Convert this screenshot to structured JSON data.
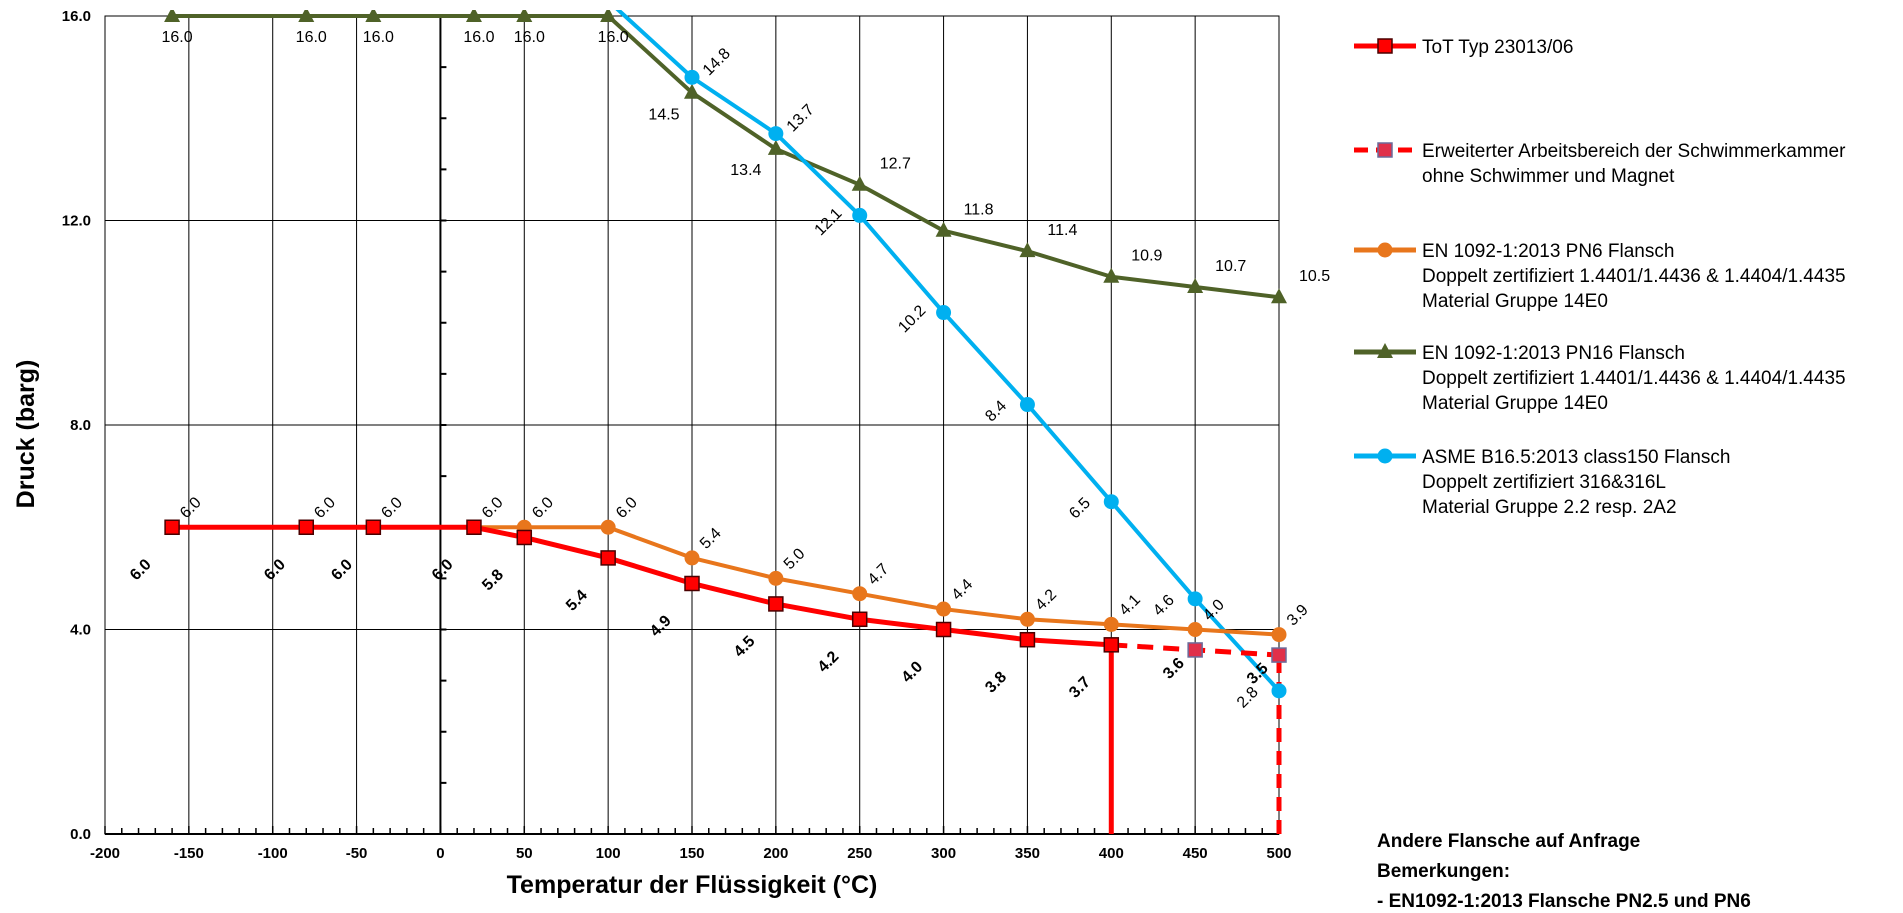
{
  "chart_data": {
    "type": "line",
    "title": "",
    "xlabel": "Temperatur der Flüssigkeit (°C)",
    "ylabel": "Druck (barg)",
    "xlim": [
      -200,
      500
    ],
    "ylim": [
      0,
      16
    ],
    "x_ticks": [
      "-200",
      "-150",
      "-100",
      "-50",
      "0",
      "50",
      "100",
      "150",
      "200",
      "250",
      "300",
      "350",
      "400",
      "450",
      "500"
    ],
    "y_ticks": [
      "0.0",
      "4.0",
      "8.0",
      "12.0",
      "16.0"
    ],
    "grid": true,
    "legend_position": "right",
    "series": [
      {
        "name": "ToT Typ 23013/06",
        "color": "#ff0000",
        "marker": "square",
        "style": "solid",
        "points": [
          [
            -160,
            6.0
          ],
          [
            -80,
            6.0
          ],
          [
            -40,
            6.0
          ],
          [
            20,
            6.0
          ],
          [
            50,
            5.8
          ],
          [
            100,
            5.4
          ],
          [
            150,
            4.9
          ],
          [
            200,
            4.5
          ],
          [
            250,
            4.2
          ],
          [
            300,
            4.0
          ],
          [
            350,
            3.8
          ],
          [
            400,
            3.7
          ]
        ],
        "labels": [
          "6.0",
          "6.0",
          "6.0",
          "6.0",
          "5.8",
          "5.4",
          "4.9",
          "4.5",
          "4.2",
          "4.0",
          "3.8",
          "3.7"
        ]
      },
      {
        "name": "Erweiterter Arbeitsbereich der Schwimmerkammer",
        "name2": "ohne Schwimmer und Magnet",
        "color": "#ff0000",
        "marker": "square",
        "style": "dashed",
        "points": [
          [
            400,
            3.7
          ],
          [
            450,
            3.6
          ],
          [
            500,
            3.5
          ]
        ],
        "labels": [
          "",
          "3.6",
          "3.5"
        ]
      },
      {
        "name": "EN 1092-1:2013 PN6 Flansch",
        "name2": "Doppelt zertifiziert 1.4401/1.4436 & 1.4404/1.4435",
        "name3": "Material Gruppe 14E0",
        "color": "#e8761c",
        "marker": "circle",
        "style": "solid",
        "points": [
          [
            -160,
            6.0
          ],
          [
            -80,
            6.0
          ],
          [
            -40,
            6.0
          ],
          [
            20,
            6.0
          ],
          [
            50,
            6.0
          ],
          [
            100,
            6.0
          ],
          [
            150,
            5.4
          ],
          [
            200,
            5.0
          ],
          [
            250,
            4.7
          ],
          [
            300,
            4.4
          ],
          [
            350,
            4.2
          ],
          [
            400,
            4.1
          ],
          [
            450,
            4.0
          ],
          [
            500,
            3.9
          ]
        ],
        "labels": [
          "6.0",
          "6.0",
          "6.0",
          "6.0",
          "6.0",
          "6.0",
          "5.4",
          "5.0",
          "4.7",
          "4.4",
          "4.2",
          "4.1",
          "4.0",
          "3.9"
        ]
      },
      {
        "name": "EN 1092-1:2013 PN16 Flansch",
        "name2": "Doppelt zertifiziert 1.4401/1.4436 & 1.4404/1.4435",
        "name3": "Material Gruppe 14E0",
        "color": "#4f6228",
        "marker": "triangle",
        "style": "solid",
        "points": [
          [
            -160,
            16.0
          ],
          [
            -80,
            16.0
          ],
          [
            -40,
            16.0
          ],
          [
            20,
            16.0
          ],
          [
            50,
            16.0
          ],
          [
            100,
            16.0
          ],
          [
            150,
            14.5
          ],
          [
            200,
            13.4
          ],
          [
            250,
            12.7
          ],
          [
            300,
            11.8
          ],
          [
            350,
            11.4
          ],
          [
            400,
            10.9
          ],
          [
            450,
            10.7
          ],
          [
            500,
            10.5
          ]
        ],
        "labels": [
          "16.0",
          "16.0",
          "16.0",
          "16.0",
          "16.0",
          "16.0",
          "14.5",
          "13.4",
          "12.7",
          "11.8",
          "11.4",
          "10.9",
          "10.7",
          "10.5"
        ]
      },
      {
        "name": "ASME B16.5:2013 class150 Flansch",
        "name2": "Doppelt zertifiziert 316&316L",
        "name3": "Material Gruppe 2.2 resp. 2A2",
        "color": "#00b0f0",
        "marker": "circle",
        "style": "solid",
        "points": [
          [
            100,
            16.3
          ],
          [
            150,
            14.8
          ],
          [
            200,
            13.7
          ],
          [
            250,
            12.1
          ],
          [
            300,
            10.2
          ],
          [
            350,
            8.4
          ],
          [
            400,
            6.5
          ],
          [
            450,
            4.6
          ],
          [
            500,
            2.8
          ]
        ],
        "labels": [
          "",
          "14.8",
          "13.7",
          "12.1",
          "10.2",
          "8.4",
          "6.5",
          "4.6",
          "2.8"
        ]
      }
    ],
    "limit_lines": [
      {
        "x": 400,
        "from": 0,
        "to": 3.7,
        "style": "solid",
        "color": "#ff0000"
      },
      {
        "x": 500,
        "from": 0,
        "to": 3.5,
        "style": "dashed",
        "color": "#ff0000"
      }
    ]
  },
  "notes": {
    "line1": "Andere Flansche auf Anfrage",
    "line2": "Bemerkungen:",
    "line3": "- EN1092-1:2013 Flansche PN2.5 und PN6"
  }
}
